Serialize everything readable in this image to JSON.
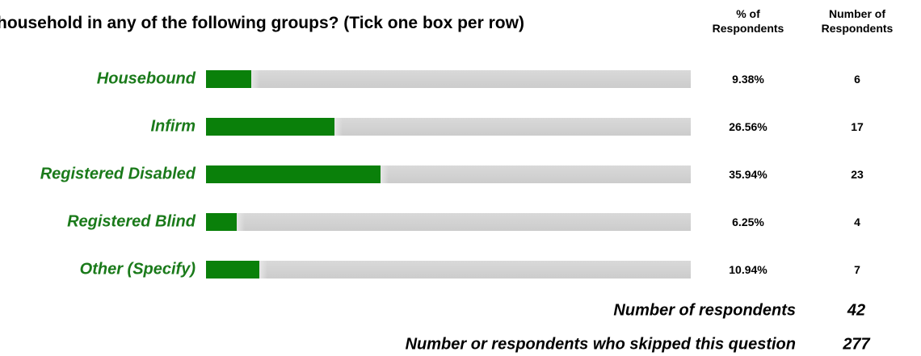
{
  "question": {
    "title": "household in any of the following groups? (Tick one box per row)"
  },
  "columns": {
    "pct_line1": "% of",
    "pct_line2": "Respondents",
    "num_line1": "Number of",
    "num_line2": "Respondents"
  },
  "colors": {
    "bar_fill": "#0a800a",
    "bar_track": "#d3d3d3",
    "label_green": "#1a7a1a"
  },
  "chart_data": {
    "type": "bar",
    "orientation": "horizontal",
    "categories": [
      "Housebound",
      "Infirm",
      "Registered Disabled",
      "Registered Blind",
      "Other (Specify)"
    ],
    "values": [
      9.38,
      26.56,
      35.94,
      6.25,
      10.94
    ],
    "value_labels": [
      "9.38%",
      "26.56%",
      "35.94%",
      "6.25%",
      "10.94%"
    ],
    "counts": [
      6,
      17,
      23,
      4,
      7
    ],
    "count_labels": [
      "6",
      "17",
      "23",
      "4",
      "7"
    ],
    "xlim": [
      0,
      100
    ],
    "grid": false
  },
  "summary": {
    "respondents_label": "Number of respondents",
    "respondents_value": "42",
    "skipped_label": "Number or respondents who skipped this question",
    "skipped_value": "277"
  }
}
